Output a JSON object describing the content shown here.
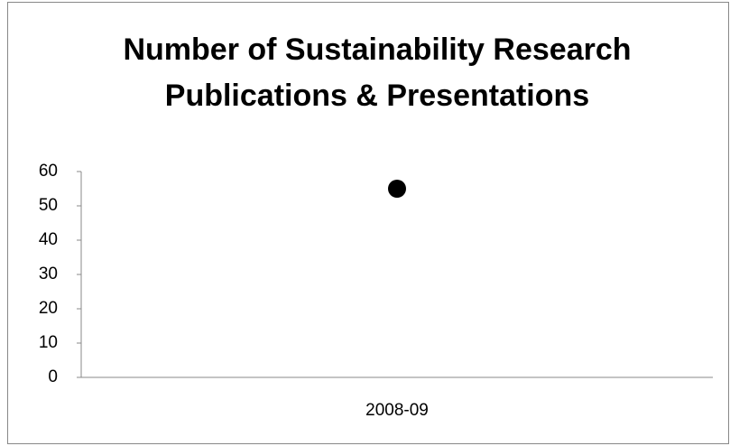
{
  "chart_data": {
    "type": "line",
    "title": [
      "Number of Sustainability Research",
      "Publications & Presentations"
    ],
    "categories": [
      "2008-09"
    ],
    "values": [
      55
    ],
    "color": "#000000",
    "marker": "circle",
    "ylim": [
      0,
      60
    ],
    "yticks": [
      0,
      10,
      20,
      30,
      40,
      50,
      60
    ],
    "grid": false
  }
}
